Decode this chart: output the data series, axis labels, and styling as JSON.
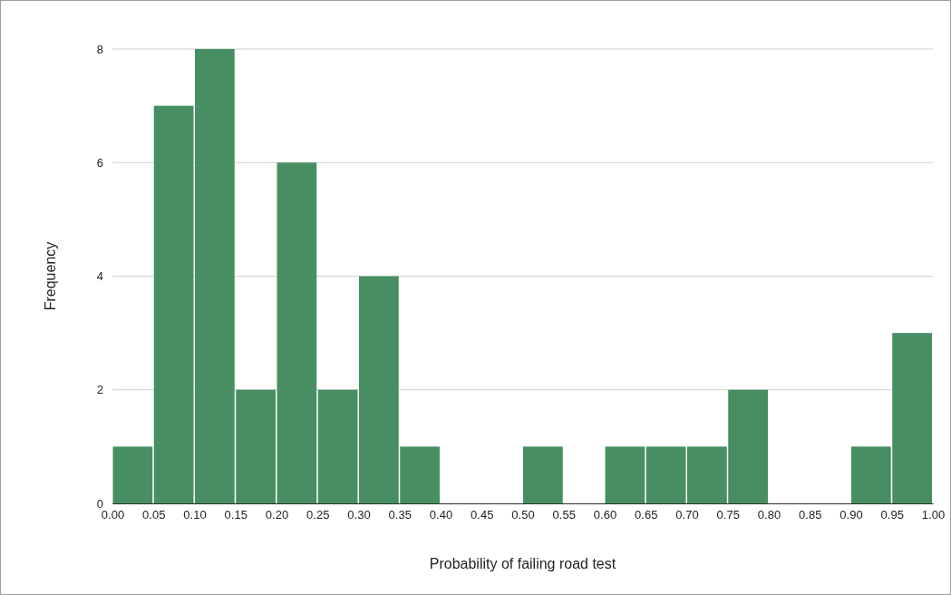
{
  "chart_data": {
    "type": "histogram",
    "xlabel": "Probability of failing road test",
    "ylabel": "Frequency",
    "bins": [
      0,
      0.05,
      0.1,
      0.15,
      0.2,
      0.25,
      0.3,
      0.35,
      0.4,
      0.45,
      0.5,
      0.55,
      0.6,
      0.65,
      0.7,
      0.75,
      0.8,
      0.85,
      0.9,
      0.95,
      1
    ],
    "values": [
      1,
      7,
      8,
      2,
      6,
      2,
      4,
      1,
      0,
      0,
      1,
      0,
      1,
      1,
      1,
      2,
      0,
      0,
      1,
      3
    ],
    "color": "#478f63",
    "xlim": [
      0,
      1
    ],
    "xticks": [
      {
        "value": 0,
        "label": "0.00"
      },
      {
        "value": 0.05,
        "label": "0.05"
      },
      {
        "value": 0.1,
        "label": "0.10"
      },
      {
        "value": 0.15,
        "label": "0.15"
      },
      {
        "value": 0.2,
        "label": "0.20"
      },
      {
        "value": 0.25,
        "label": "0.25"
      },
      {
        "value": 0.3,
        "label": "0.30"
      },
      {
        "value": 0.35,
        "label": "0.35"
      },
      {
        "value": 0.4,
        "label": "0.40"
      },
      {
        "value": 0.45,
        "label": "0.45"
      },
      {
        "value": 0.5,
        "label": "0.50"
      },
      {
        "value": 0.55,
        "label": "0.55"
      },
      {
        "value": 0.6,
        "label": "0.60"
      },
      {
        "value": 0.65,
        "label": "0.65"
      },
      {
        "value": 0.7,
        "label": "0.70"
      },
      {
        "value": 0.75,
        "label": "0.75"
      },
      {
        "value": 0.8,
        "label": "0.80"
      },
      {
        "value": 0.85,
        "label": "0.85"
      },
      {
        "value": 0.9,
        "label": "0.90"
      },
      {
        "value": 0.95,
        "label": "0.95"
      },
      {
        "value": 1,
        "label": "1.00"
      }
    ],
    "ylim": [
      0,
      8
    ],
    "yticks": [
      0,
      2,
      4,
      6,
      8
    ],
    "grid": "y"
  }
}
